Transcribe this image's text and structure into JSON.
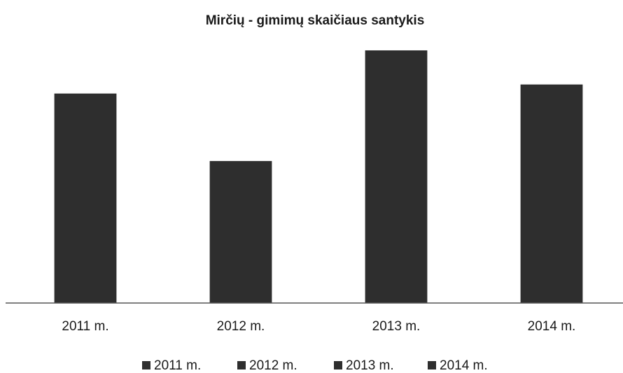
{
  "chart_data": {
    "type": "bar",
    "title": "Mirčių - gimimų skaičiaus santykis",
    "categories": [
      "2011 m.",
      "2012 m.",
      "2013 m.",
      "2014 m."
    ],
    "values": [
      301,
      204,
      363,
      314
    ],
    "color": "#2e2e2e",
    "ylim": [
      0,
      365
    ],
    "legend": "bottom"
  }
}
